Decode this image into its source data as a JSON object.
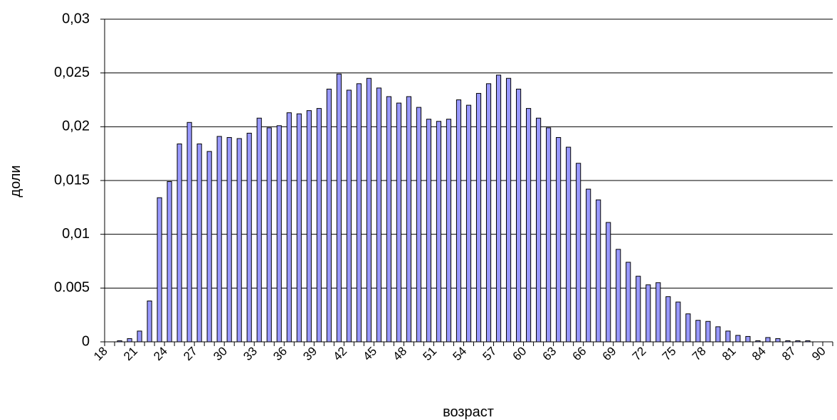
{
  "chart_data": {
    "type": "bar",
    "x_label": "возраст",
    "y_label": "доли",
    "categories": [
      "18",
      null,
      null,
      "21",
      null,
      null,
      "24",
      null,
      null,
      "27",
      null,
      null,
      "30",
      null,
      null,
      "33",
      null,
      null,
      "36",
      null,
      null,
      "39",
      null,
      null,
      "42",
      null,
      null,
      "45",
      null,
      null,
      "48",
      null,
      null,
      "51",
      null,
      null,
      "54",
      null,
      null,
      "57",
      null,
      null,
      "60",
      null,
      null,
      "63",
      null,
      null,
      "66",
      null,
      null,
      "69",
      null,
      null,
      "72",
      null,
      null,
      "75",
      null,
      null,
      "78",
      null,
      null,
      "81",
      null,
      null,
      "84",
      null,
      null,
      "87",
      null,
      null,
      "90"
    ],
    "values": [
      0,
      0.0001,
      0.0003,
      0.001,
      0.0038,
      0.0134,
      0.0149,
      0.0184,
      0.0204,
      0.0184,
      0.0177,
      0.0191,
      0.019,
      0.0189,
      0.0194,
      0.0208,
      0.0199,
      0.0201,
      0.0213,
      0.0212,
      0.0215,
      0.0217,
      0.0235,
      0.0249,
      0.0234,
      0.024,
      0.0245,
      0.0236,
      0.0228,
      0.0222,
      0.0228,
      0.0218,
      0.0207,
      0.0205,
      0.0207,
      0.0225,
      0.022,
      0.0231,
      0.024,
      0.0248,
      0.0245,
      0.0235,
      0.0217,
      0.0208,
      0.0199,
      0.019,
      0.0181,
      0.0166,
      0.0142,
      0.0132,
      0.0111,
      0.0086,
      0.0074,
      0.0061,
      0.0053,
      0.0055,
      0.0042,
      0.0037,
      0.0026,
      0.002,
      0.0019,
      0.0014,
      0.001,
      0.0006,
      0.0005,
      0.0001,
      0.0004,
      0.0003,
      0.0001,
      0.0001,
      0.0001,
      0,
      0
    ],
    "color": "#9999ff",
    "ylim": [
      0,
      0.03
    ],
    "yticks": [
      0,
      {
        "value": 0.005,
        "label": "0.005"
      },
      {
        "value": 0.01,
        "label": "0,01"
      },
      {
        "value": 0.015,
        "label": "0,015"
      },
      {
        "value": 0.02,
        "label": "0,02"
      },
      {
        "value": 0.025,
        "label": "0,025"
      },
      {
        "value": 0.03,
        "label": "0,03"
      }
    ],
    "grid": true
  }
}
